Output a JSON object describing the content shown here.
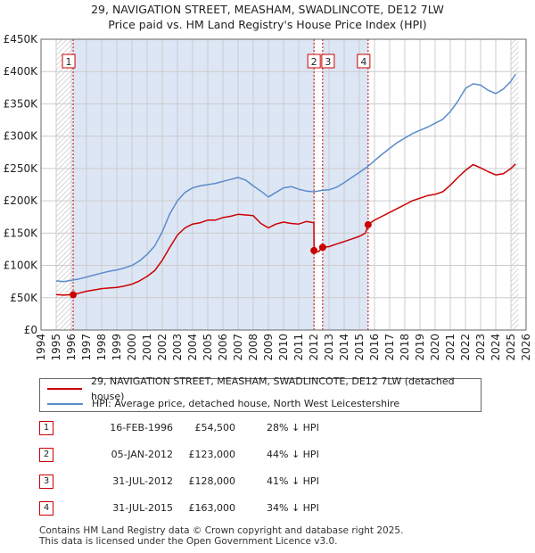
{
  "title": {
    "line1": "29, NAVIGATION STREET, MEASHAM, SWADLINCOTE, DE12 7LW",
    "line2": "Price paid vs. HM Land Registry's House Price Index (HPI)"
  },
  "colors": {
    "price": "#cc0000",
    "hpi": "#5b8ccc",
    "shade": "#dde6f5",
    "grid": "#cccccc"
  },
  "chart_data": {
    "type": "line",
    "title": "Price paid vs. HM Land Registry's House Price Index (HPI)",
    "xlabel": "",
    "ylabel": "",
    "xlim": [
      1994,
      2026
    ],
    "ylim": [
      0,
      450000
    ],
    "x_ticks": [
      "1994",
      "1995",
      "1996",
      "1997",
      "1998",
      "1999",
      "2000",
      "2001",
      "2002",
      "2003",
      "2004",
      "2005",
      "2006",
      "2007",
      "2008",
      "2009",
      "2010",
      "2011",
      "2012",
      "2013",
      "2014",
      "2015",
      "2016",
      "2017",
      "2018",
      "2019",
      "2020",
      "2021",
      "2022",
      "2023",
      "2024",
      "2025",
      "2026"
    ],
    "y_ticks": [
      {
        "value": 0,
        "label": "£0"
      },
      {
        "value": 50000,
        "label": "£50K"
      },
      {
        "value": 100000,
        "label": "£100K"
      },
      {
        "value": 150000,
        "label": "£150K"
      },
      {
        "value": 200000,
        "label": "£200K"
      },
      {
        "value": 250000,
        "label": "£250K"
      },
      {
        "value": 300000,
        "label": "£300K"
      },
      {
        "value": 350000,
        "label": "£350K"
      },
      {
        "value": 400000,
        "label": "£400K"
      },
      {
        "value": 450000,
        "label": "£450K"
      }
    ],
    "grid": true,
    "shaded_periods": [
      [
        1996.12,
        2012.01
      ],
      [
        2012.58,
        2015.58
      ]
    ],
    "hatched_periods": [
      [
        1995.0,
        1996.12
      ],
      [
        2025.0,
        2025.5
      ]
    ],
    "series": [
      {
        "name": "29, NAVIGATION STREET, MEASHAM, SWADLINCOTE, DE12 7LW (detached house)",
        "color": "#cc0000",
        "x": [
          1995.0,
          1995.5,
          1996.0,
          1996.12,
          1996.5,
          1997,
          1997.5,
          1998,
          1998.5,
          1999,
          1999.5,
          2000,
          2000.5,
          2001,
          2001.5,
          2002,
          2002.5,
          2003,
          2003.5,
          2004,
          2004.5,
          2005,
          2005.5,
          2006,
          2006.5,
          2007,
          2007.5,
          2008,
          2008.5,
          2009,
          2009.5,
          2010,
          2010.5,
          2011,
          2011.5,
          2012.0,
          2012.01,
          2012.3,
          2012.58,
          2013,
          2013.5,
          2014,
          2014.5,
          2015,
          2015.4,
          2015.58,
          2016,
          2016.5,
          2017,
          2017.5,
          2018,
          2018.5,
          2019,
          2019.5,
          2020,
          2020.5,
          2021,
          2021.5,
          2022,
          2022.5,
          2023,
          2023.5,
          2024,
          2024.5,
          2025,
          2025.3
        ],
        "values": [
          55000,
          54000,
          55000,
          54500,
          57000,
          60000,
          62000,
          64000,
          65000,
          66000,
          68000,
          71000,
          76000,
          83000,
          92000,
          108000,
          128000,
          147000,
          158000,
          164000,
          166000,
          170000,
          170000,
          174000,
          176000,
          179000,
          178000,
          177000,
          165000,
          158000,
          164000,
          167000,
          165000,
          164000,
          168000,
          166000,
          123000,
          121000,
          128000,
          129000,
          133000,
          137000,
          141000,
          145000,
          150000,
          163000,
          170000,
          176000,
          182000,
          188000,
          194000,
          200000,
          204000,
          208000,
          210000,
          214000,
          224000,
          236000,
          247000,
          256000,
          251000,
          245000,
          240000,
          242000,
          250000,
          257000
        ]
      },
      {
        "name": "HPI: Average price, detached house, North West Leicestershire",
        "color": "#5b8ccc",
        "x": [
          1995.0,
          1995.5,
          1996.0,
          1996.5,
          1997,
          1997.5,
          1998,
          1998.5,
          1999,
          1999.5,
          2000,
          2000.5,
          2001,
          2001.5,
          2002,
          2002.5,
          2003,
          2003.5,
          2004,
          2004.5,
          2005,
          2005.5,
          2006,
          2006.5,
          2007,
          2007.5,
          2008,
          2008.5,
          2009,
          2009.5,
          2010,
          2010.5,
          2011,
          2011.5,
          2012,
          2012.5,
          2013,
          2013.5,
          2014,
          2014.5,
          2015,
          2015.5,
          2016,
          2016.5,
          2017,
          2017.5,
          2018,
          2018.5,
          2019,
          2019.5,
          2020,
          2020.5,
          2021,
          2021.5,
          2022,
          2022.5,
          2023,
          2023.5,
          2024,
          2024.5,
          2025,
          2025.3
        ],
        "values": [
          76000,
          75000,
          77000,
          79000,
          82000,
          85000,
          88000,
          91000,
          93000,
          96000,
          100000,
          107000,
          117000,
          130000,
          152000,
          180000,
          200000,
          213000,
          220000,
          223000,
          225000,
          227000,
          230000,
          233000,
          236000,
          232000,
          223000,
          215000,
          206000,
          213000,
          220000,
          222000,
          218000,
          215000,
          214000,
          216000,
          217000,
          221000,
          228000,
          236000,
          244000,
          252000,
          262000,
          272000,
          281000,
          290000,
          297000,
          304000,
          309000,
          314000,
          320000,
          326000,
          338000,
          354000,
          374000,
          381000,
          379000,
          371000,
          366000,
          373000,
          385000,
          396000
        ]
      }
    ],
    "annotations": [
      {
        "label": "1",
        "x": 1996.12
      },
      {
        "label": "2",
        "x": 2012.01
      },
      {
        "label": "3",
        "x": 2012.58
      },
      {
        "label": "4",
        "x": 2015.58
      }
    ],
    "sale_points": [
      {
        "x": 1996.12,
        "value": 54500
      },
      {
        "x": 2012.01,
        "value": 123000
      },
      {
        "x": 2012.58,
        "value": 128000
      },
      {
        "x": 2015.58,
        "value": 163000
      }
    ]
  },
  "legend": {
    "price_label": "29, NAVIGATION STREET, MEASHAM, SWADLINCOTE, DE12 7LW (detached house)",
    "hpi_label": "HPI: Average price, detached house, North West Leicestershire"
  },
  "sales": [
    {
      "num": "1",
      "date": "16-FEB-1996",
      "price": "£54,500",
      "hpi": "28% ↓ HPI"
    },
    {
      "num": "2",
      "date": "05-JAN-2012",
      "price": "£123,000",
      "hpi": "44% ↓ HPI"
    },
    {
      "num": "3",
      "date": "31-JUL-2012",
      "price": "£128,000",
      "hpi": "41% ↓ HPI"
    },
    {
      "num": "4",
      "date": "31-JUL-2015",
      "price": "£163,000",
      "hpi": "34% ↓ HPI"
    }
  ],
  "footer": {
    "line1": "Contains HM Land Registry data © Crown copyright and database right 2025.",
    "line2": "This data is licensed under the Open Government Licence v3.0."
  }
}
